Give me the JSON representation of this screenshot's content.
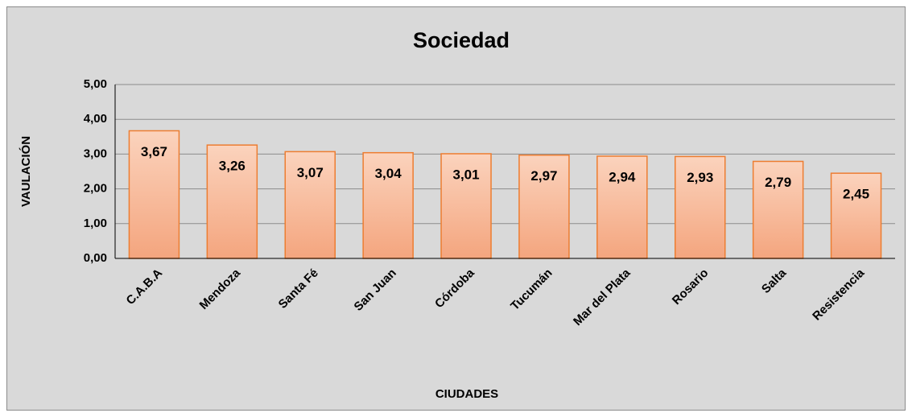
{
  "chart_data": {
    "type": "bar",
    "title": "Sociedad",
    "x_label": "CIUDADES",
    "y_label": "VAULACIÓN",
    "categories": [
      "C.A.B.A",
      "Mendoza",
      "Santa Fé",
      "San Juan",
      "Córdoba",
      "Tucumán",
      "Mar del Plata",
      "Rosario",
      "Salta",
      "Resistencia"
    ],
    "values": [
      3.67,
      3.26,
      3.07,
      3.04,
      3.01,
      2.97,
      2.94,
      2.93,
      2.79,
      2.45
    ],
    "value_labels": [
      "3,67",
      "3,26",
      "3,07",
      "3,04",
      "3,01",
      "2,97",
      "2,94",
      "2,93",
      "2,79",
      "2,45"
    ],
    "color": "#f4a57e",
    "ylim": [
      0,
      5
    ],
    "yticks": [
      {
        "value": 0,
        "label": "0,00"
      },
      {
        "value": 1,
        "label": "1,00"
      },
      {
        "value": 2,
        "label": "2,00"
      },
      {
        "value": 3,
        "label": "3,00"
      },
      {
        "value": 4,
        "label": "4,00"
      },
      {
        "value": 5,
        "label": "5,00"
      }
    ],
    "grid": true
  }
}
